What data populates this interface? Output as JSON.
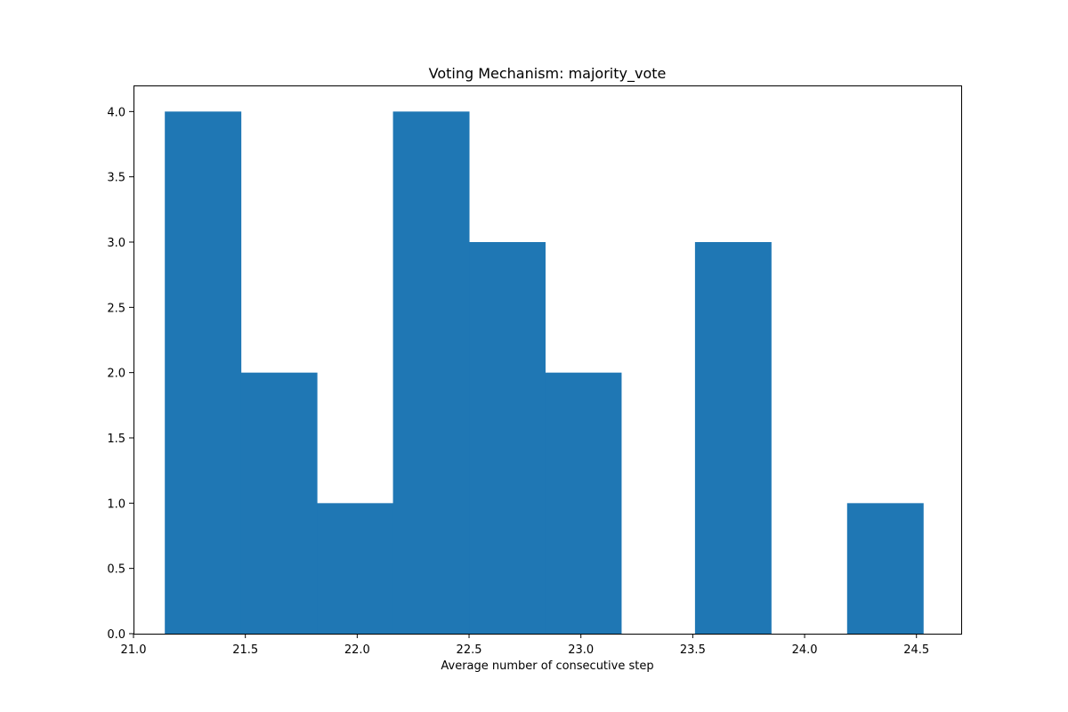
{
  "chart_data": {
    "type": "bar",
    "subtype": "histogram",
    "title": "Voting Mechanism: majority_vote",
    "xlabel": "Average number of consecutive step",
    "ylabel": "",
    "bin_edges": [
      21.14,
      21.48,
      21.82,
      22.16,
      22.5,
      22.84,
      23.18,
      23.51,
      23.85,
      24.19,
      24.53
    ],
    "values": [
      4,
      2,
      1,
      4,
      3,
      2,
      0,
      3,
      0,
      1
    ],
    "xlim": [
      21.0,
      24.7
    ],
    "ylim": [
      0,
      4.2
    ],
    "x_ticks": [
      "21.0",
      "21.5",
      "22.0",
      "22.5",
      "23.0",
      "23.5",
      "24.0",
      "24.5"
    ],
    "y_ticks": [
      "0.0",
      "0.5",
      "1.0",
      "1.5",
      "2.0",
      "2.5",
      "3.0",
      "3.5",
      "4.0"
    ],
    "grid": false,
    "bar_color": "#1f77b4"
  }
}
